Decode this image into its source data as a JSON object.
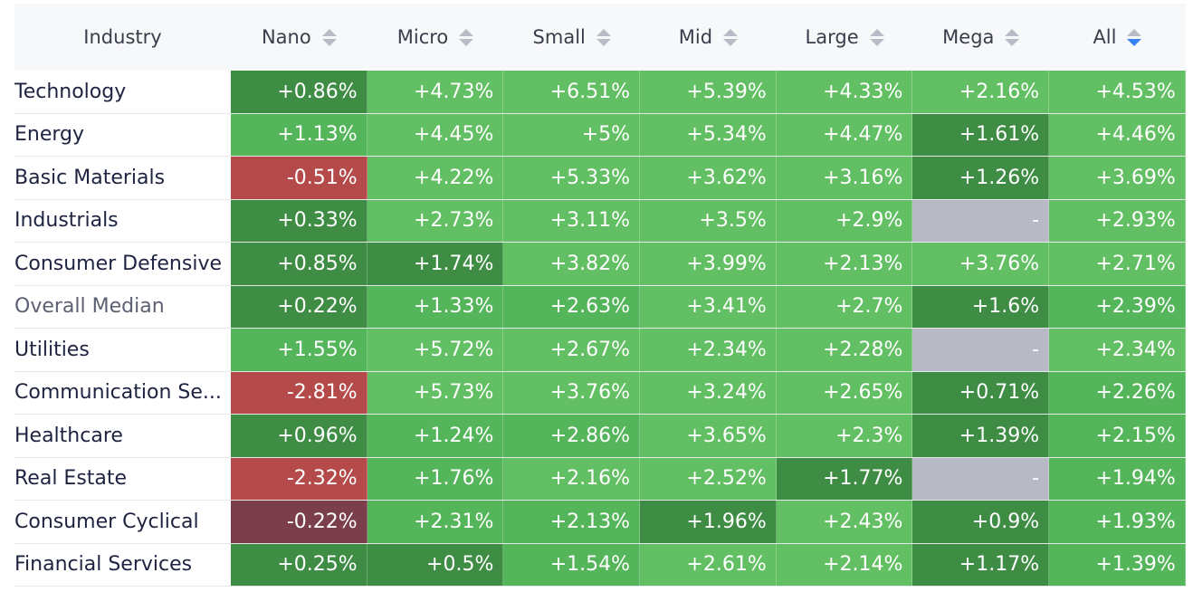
{
  "header": {
    "industry_label": "Industry",
    "columns": [
      "Nano",
      "Micro",
      "Small",
      "Mid",
      "Large",
      "Mega",
      "All"
    ],
    "sorted_column": "All",
    "sort_direction": "descending"
  },
  "colors": {
    "strong_green": "#4aa752",
    "mid_green": "#55b55b",
    "light_green": "#63bf63",
    "dark_green": "#3f8d45",
    "red": "#b54a4a",
    "dark_red": "#7b3f4c",
    "na_gray": "#b7bac4",
    "active_sort": "#3b82f6"
  },
  "rows": [
    {
      "industry": "Technology",
      "values": [
        "+0.86%",
        "+4.73%",
        "+6.51%",
        "+5.39%",
        "+4.33%",
        "+2.16%",
        "+4.53%"
      ]
    },
    {
      "industry": "Energy",
      "values": [
        "+1.13%",
        "+4.45%",
        "+5%",
        "+5.34%",
        "+4.47%",
        "+1.61%",
        "+4.46%"
      ]
    },
    {
      "industry": "Basic Materials",
      "values": [
        "-0.51%",
        "+4.22%",
        "+5.33%",
        "+3.62%",
        "+3.16%",
        "+1.26%",
        "+3.69%"
      ]
    },
    {
      "industry": "Industrials",
      "values": [
        "+0.33%",
        "+2.73%",
        "+3.11%",
        "+3.5%",
        "+2.9%",
        "-",
        "+2.93%"
      ]
    },
    {
      "industry": "Consumer Defensive",
      "values": [
        "+0.85%",
        "+1.74%",
        "+3.82%",
        "+3.99%",
        "+2.13%",
        "+3.76%",
        "+2.71%"
      ]
    },
    {
      "industry": "Overall Median",
      "values": [
        "+0.22%",
        "+1.33%",
        "+2.63%",
        "+3.41%",
        "+2.7%",
        "+1.6%",
        "+2.39%"
      ]
    },
    {
      "industry": "Utilities",
      "values": [
        "+1.55%",
        "+5.72%",
        "+2.67%",
        "+2.34%",
        "+2.28%",
        "-",
        "+2.34%"
      ]
    },
    {
      "industry": "Communication Se...",
      "values": [
        "-2.81%",
        "+5.73%",
        "+3.76%",
        "+3.24%",
        "+2.65%",
        "+0.71%",
        "+2.26%"
      ]
    },
    {
      "industry": "Healthcare",
      "values": [
        "+0.96%",
        "+1.24%",
        "+2.86%",
        "+3.65%",
        "+2.3%",
        "+1.39%",
        "+2.15%"
      ]
    },
    {
      "industry": "Real Estate",
      "values": [
        "-2.32%",
        "+1.76%",
        "+2.16%",
        "+2.52%",
        "+1.77%",
        "-",
        "+1.94%"
      ]
    },
    {
      "industry": "Consumer Cyclical",
      "values": [
        "-0.22%",
        "+2.31%",
        "+2.13%",
        "+1.96%",
        "+2.43%",
        "+0.9%",
        "+1.93%"
      ]
    },
    {
      "industry": "Financial Services",
      "values": [
        "+0.25%",
        "+0.5%",
        "+1.54%",
        "+2.61%",
        "+2.14%",
        "+1.17%",
        "+1.39%"
      ]
    }
  ]
}
